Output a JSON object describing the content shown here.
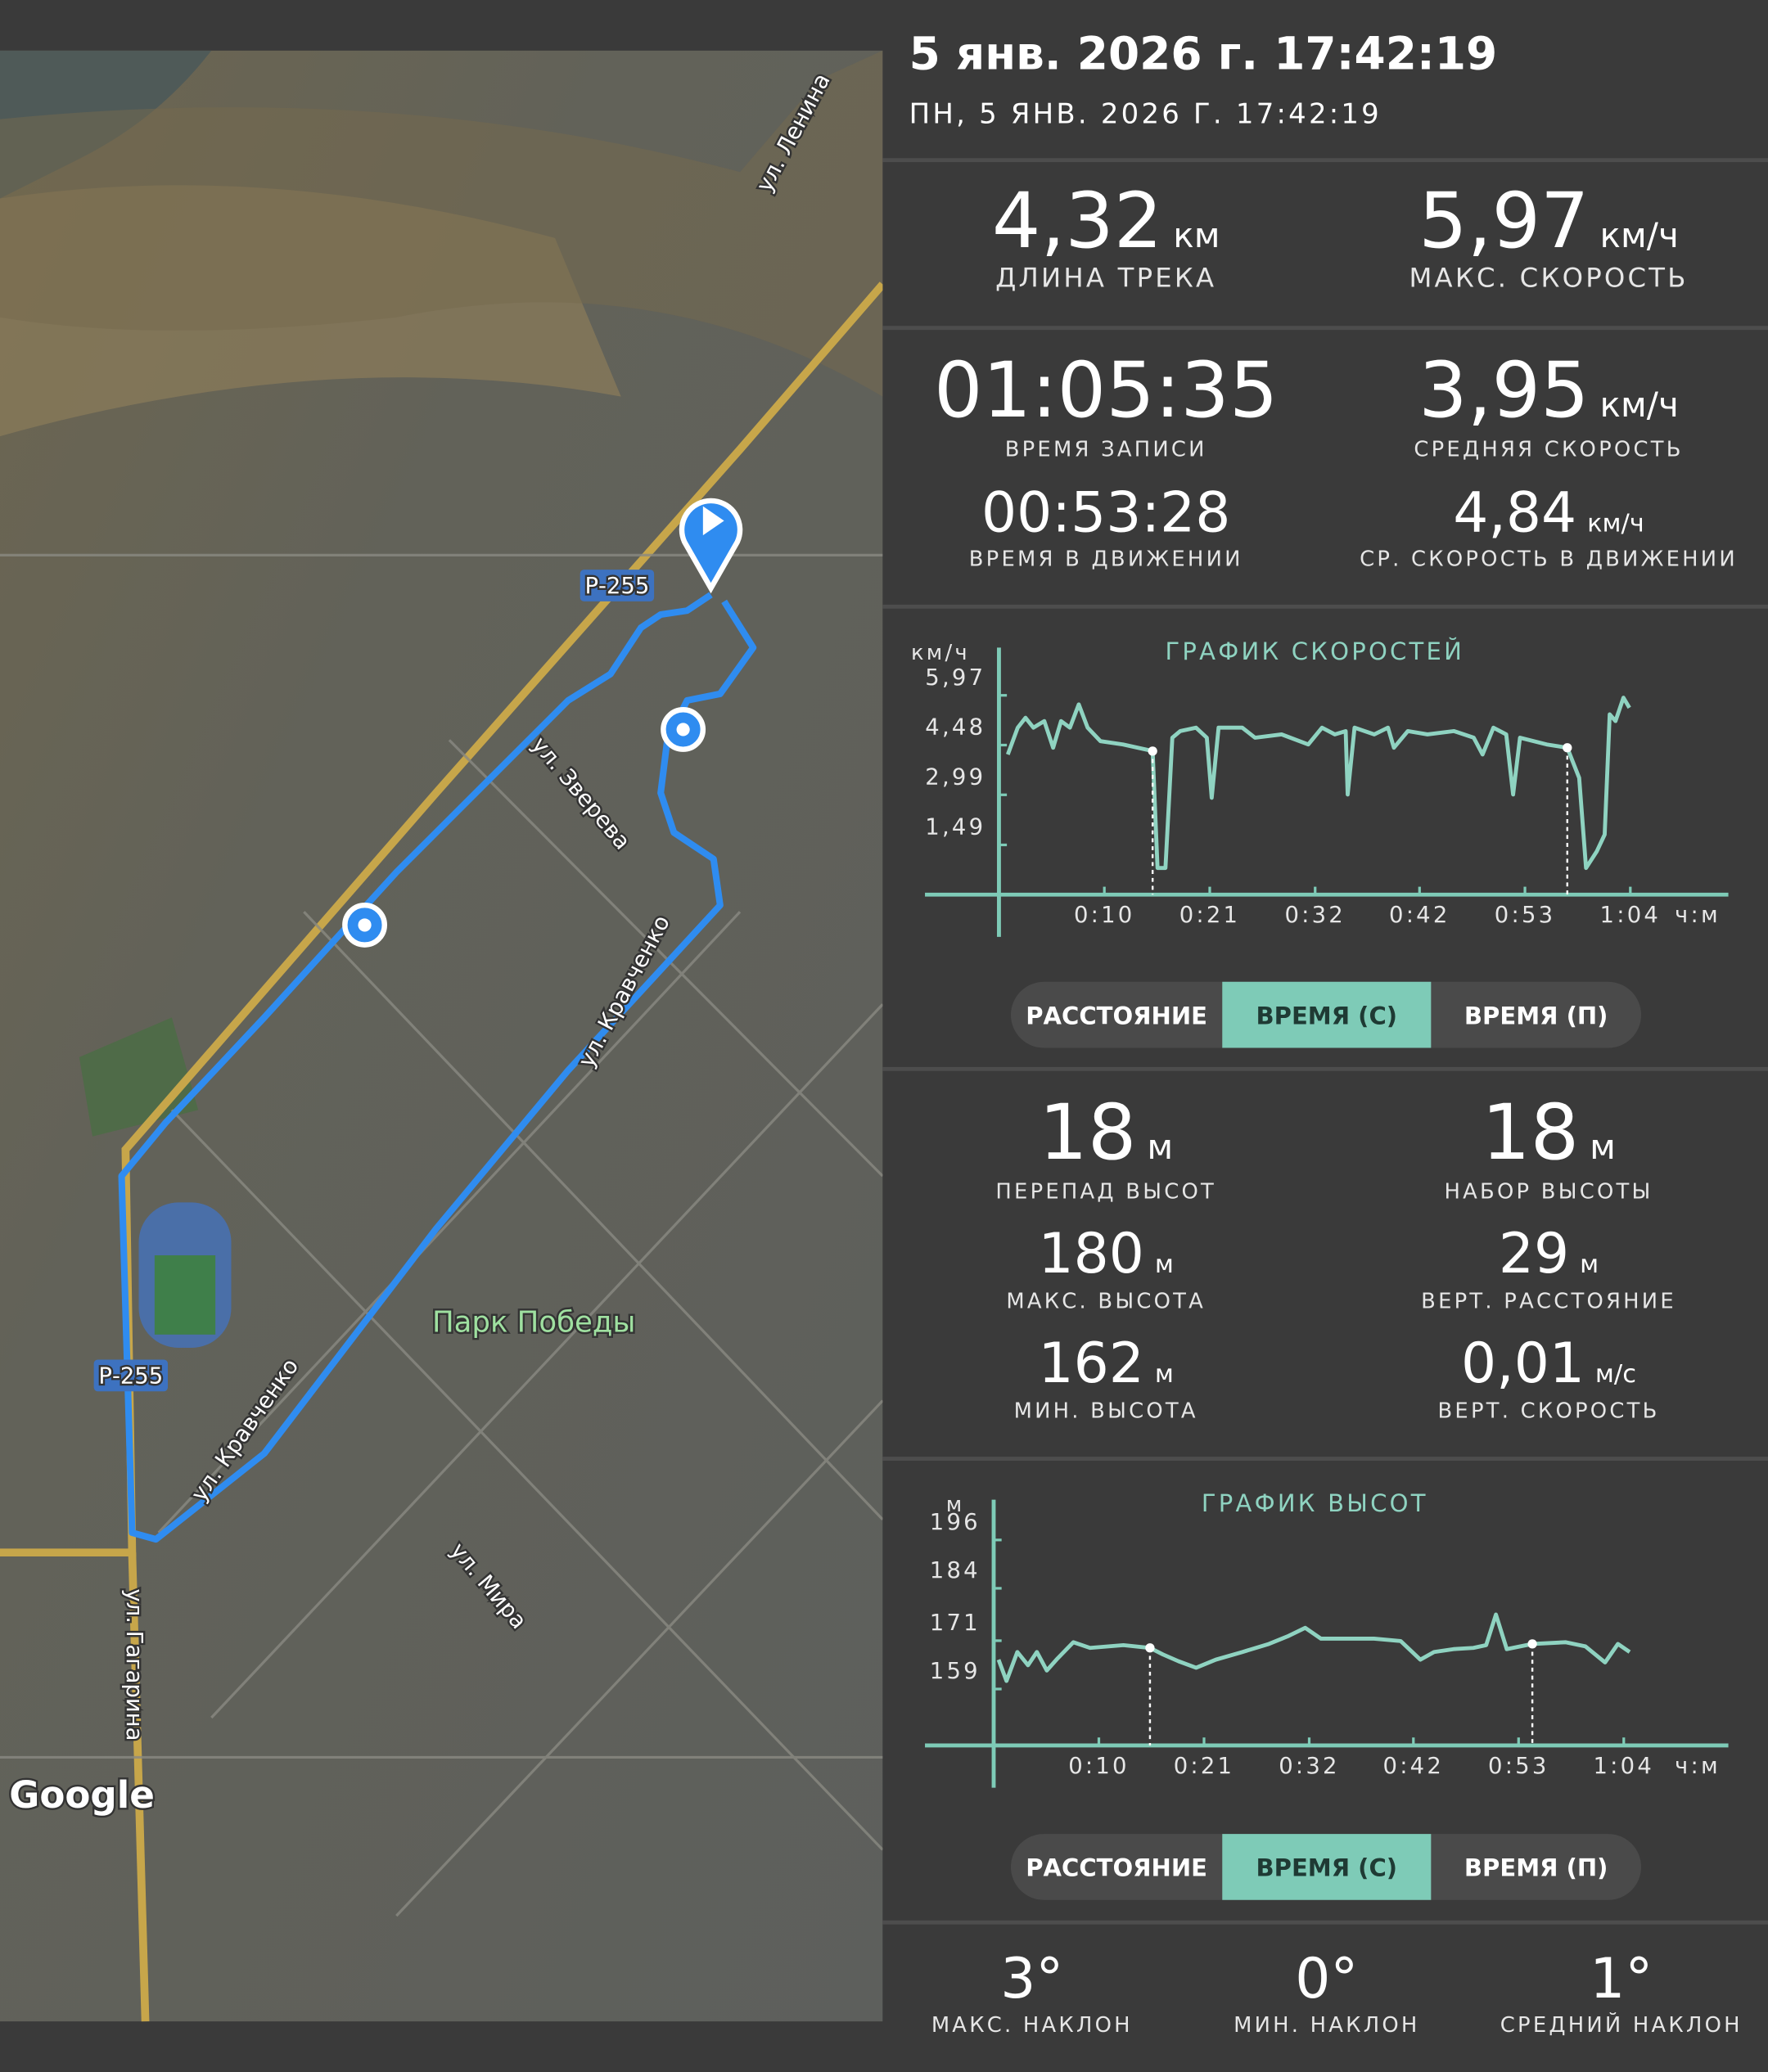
{
  "header": {
    "title": "5 янв. 2026 г. 17:42:19",
    "subtitle": "ПН, 5 ЯНВ. 2026 Г. 17:42:19"
  },
  "map": {
    "labels": [
      "ул. Ленина",
      "Р-255",
      "ул. Зверева",
      "ул. Кравченко",
      "Парк Победы",
      "Р-255",
      "ул. Кравченко",
      "ул. Мира",
      "ул. Гагарина",
      "Google"
    ]
  },
  "stats": [
    {
      "value": "4,32",
      "unit": "км",
      "label": "ДЛИНА ТРЕКА"
    },
    {
      "value": "5,97",
      "unit": "км/ч",
      "label": "МАКС. СКОРОСТЬ"
    },
    {
      "value": "01:05:35",
      "label": "ВРЕМЯ ЗАПИСИ"
    },
    {
      "value": "3,95",
      "unit": "км/ч",
      "label": "СРЕДНЯЯ СКОРОСТЬ"
    },
    {
      "value": "00:53:28",
      "label": "ВРЕМЯ В ДВИЖЕНИИ"
    },
    {
      "value": "4,84",
      "unit": "км/ч",
      "label": "СР. СКОРОСТЬ В ДВИЖЕНИИ"
    },
    {
      "value": "18",
      "unit": "м",
      "label": "ПЕРЕПАД ВЫСОТ"
    },
    {
      "value": "18",
      "unit": "м",
      "label": "НАБОР ВЫСОТЫ"
    },
    {
      "value": "180",
      "unit": "м",
      "label": "МАКС. ВЫСОТА"
    },
    {
      "value": "29",
      "unit": "м",
      "label": "ВЕРТ. РАССТОЯНИЕ"
    },
    {
      "value": "162",
      "unit": "м",
      "label": "МИН. ВЫСОТА"
    },
    {
      "value": "0,01",
      "unit": "м/с",
      "label": "ВЕРТ. СКОРОСТЬ"
    },
    {
      "value": "3°",
      "label": "МАКС. НАКЛОН"
    },
    {
      "value": "0°",
      "label": "МИН. НАКЛОН"
    },
    {
      "value": "1°",
      "label": "СРЕДНИЙ НАКЛОН"
    }
  ],
  "speed_chart": {
    "type": "line",
    "title": "ГРАФИК СКОРОСТЕЙ",
    "ylabel": "км/ч",
    "xlabel": "ч:м",
    "color": "#8fd3c1",
    "x": [
      0.9,
      1.9,
      2.7,
      3.5,
      4.6,
      5.5,
      6.3,
      7.2,
      8.1,
      9.0,
      10.3,
      12.6,
      15.6,
      16.1,
      16.9,
      17.6,
      18.4,
      20.0,
      21.1,
      21.6,
      22.3,
      24.7,
      26.0,
      28.7,
      31.4,
      32.8,
      34.1,
      35.2,
      35.4,
      36.1,
      38.1,
      39.5,
      40.1,
      41.5,
      43.5,
      46.2,
      48.2,
      49.1,
      50.2,
      51.5,
      52.2,
      52.9,
      55.6,
      57.7,
      58.9,
      59.6,
      60.7,
      61.5,
      62.0,
      62.6,
      63.4,
      64.0
    ],
    "values": [
      4.2,
      5.0,
      5.3,
      5.0,
      5.2,
      4.4,
      5.2,
      5.0,
      5.7,
      5.0,
      4.6,
      4.5,
      4.3,
      0.8,
      0.8,
      4.7,
      4.9,
      5.0,
      4.7,
      2.9,
      5.0,
      5.0,
      4.7,
      4.8,
      4.5,
      5.0,
      4.8,
      4.9,
      3.0,
      5.0,
      4.8,
      5.0,
      4.4,
      4.9,
      4.8,
      4.9,
      4.7,
      4.2,
      5.0,
      4.8,
      3.0,
      4.7,
      4.5,
      4.4,
      3.5,
      0.8,
      1.3,
      1.8,
      5.4,
      5.2,
      5.9,
      5.6
    ],
    "pauses": [
      {
        "x": 15.6,
        "y": 4.3
      },
      {
        "x": 57.7,
        "y": 4.4
      }
    ],
    "xlim": [
      0,
      65.6
    ],
    "ylim": [
      0,
      7.4
    ],
    "xticks": [
      {
        "value": 10.7,
        "label": "0:10"
      },
      {
        "value": 21.4,
        "label": "0:21"
      },
      {
        "value": 32.1,
        "label": "0:32"
      },
      {
        "value": 42.7,
        "label": "0:42"
      },
      {
        "value": 53.4,
        "label": "0:53"
      },
      {
        "value": 64.1,
        "label": "1:04"
      }
    ],
    "yticks": [
      {
        "value": 1.49,
        "label": "1,49"
      },
      {
        "value": 2.99,
        "label": "2,99"
      },
      {
        "value": 4.48,
        "label": "4,48"
      },
      {
        "value": 5.97,
        "label": "5,97"
      }
    ],
    "buttons": [
      "РАССТОЯНИЕ",
      "ВРЕМЯ (С)",
      "ВРЕМЯ (П)"
    ]
  },
  "elevation_chart": {
    "type": "line",
    "title": "ГРАФИК ВЫСОТ",
    "ylabel": "м",
    "xlabel": "ч:м",
    "color": "#8fd3c1",
    "x": [
      0.5,
      1.3,
      2.4,
      3.5,
      4.4,
      5.4,
      6.5,
      8.1,
      9.8,
      13.2,
      15.9,
      17.2,
      18.8,
      20.6,
      22.6,
      25.3,
      28.0,
      30.0,
      31.7,
      33.3,
      36.0,
      38.7,
      41.4,
      43.4,
      44.8,
      46.8,
      48.8,
      50.1,
      51.1,
      52.2,
      54.8,
      58.2,
      60.2,
      62.2,
      63.5,
      64.7
    ],
    "values": [
      166.3,
      161.0,
      168.2,
      164.9,
      168.2,
      163.6,
      166.6,
      170.6,
      169.2,
      169.9,
      169.2,
      167.6,
      165.9,
      164.3,
      166.3,
      168.2,
      170.2,
      172.2,
      174.2,
      171.5,
      171.5,
      171.5,
      170.9,
      166.3,
      168.2,
      168.9,
      169.2,
      169.9,
      177.5,
      168.9,
      170.2,
      170.6,
      169.6,
      165.6,
      170.2,
      168.2
    ],
    "pauses": [
      {
        "x": 15.9,
        "y": 169.2
      },
      {
        "x": 54.8,
        "y": 170.2
      }
    ],
    "xlim": [
      0,
      65.6
    ],
    "ylim": [
      145,
      206
    ],
    "xticks": [
      {
        "value": 10.7,
        "label": "0:10"
      },
      {
        "value": 21.4,
        "label": "0:21"
      },
      {
        "value": 32.1,
        "label": "0:32"
      },
      {
        "value": 42.7,
        "label": "0:42"
      },
      {
        "value": 53.4,
        "label": "0:53"
      },
      {
        "value": 64.1,
        "label": "1:04"
      }
    ],
    "yticks": [
      159,
      171,
      184,
      196
    ],
    "buttons": [
      "РАССТОЯНИЕ",
      "ВРЕМЯ (С)",
      "ВРЕМЯ (П)"
    ]
  }
}
